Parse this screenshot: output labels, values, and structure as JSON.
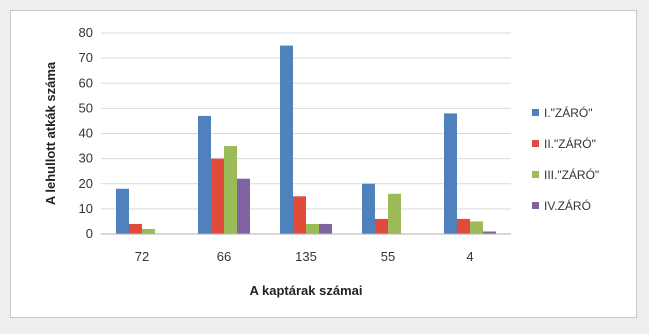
{
  "chart_data": {
    "type": "bar",
    "categories": [
      "72",
      "66",
      "135",
      "55",
      "4"
    ],
    "series": [
      {
        "name": "I.\"ZÁRÓ\"",
        "color": "#4f81bd",
        "values": [
          18,
          47,
          75,
          20,
          48
        ]
      },
      {
        "name": "II.\"ZÁRÓ\"",
        "color": "#e04b3c",
        "values": [
          4,
          30,
          15,
          6,
          6
        ]
      },
      {
        "name": "III.\"ZÁRÓ\"",
        "color": "#9bbb59",
        "values": [
          2,
          35,
          4,
          16,
          5
        ]
      },
      {
        "name": "IV.ZÁRÓ",
        "color": "#8064a2",
        "values": [
          0,
          22,
          4,
          0,
          1
        ]
      }
    ],
    "title": "",
    "xlabel": "A kaptárak számai",
    "ylabel": "A lehullott atkák száma",
    "ylim": [
      0,
      80
    ],
    "yticks": [
      0,
      10,
      20,
      30,
      40,
      50,
      60,
      70,
      80
    ],
    "grid": true,
    "legend_position": "right"
  }
}
